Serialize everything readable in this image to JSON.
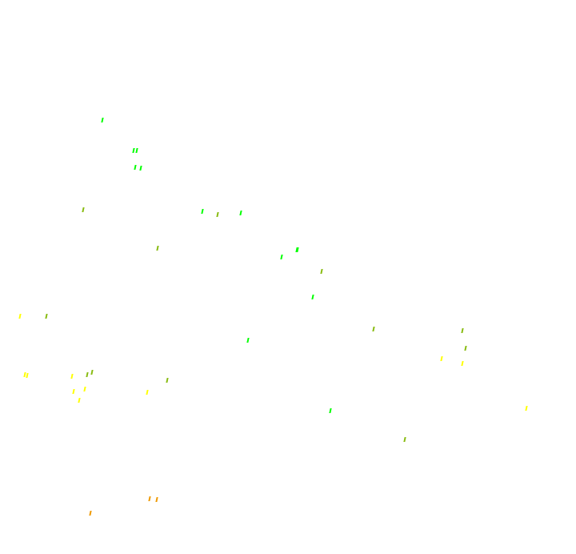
{
  "colors": {
    "background": "#ffffff",
    "green": "#00ff00",
    "olive": "#88bb11",
    "yellow": "#ffff00",
    "orange": "#ee9900"
  }
}
